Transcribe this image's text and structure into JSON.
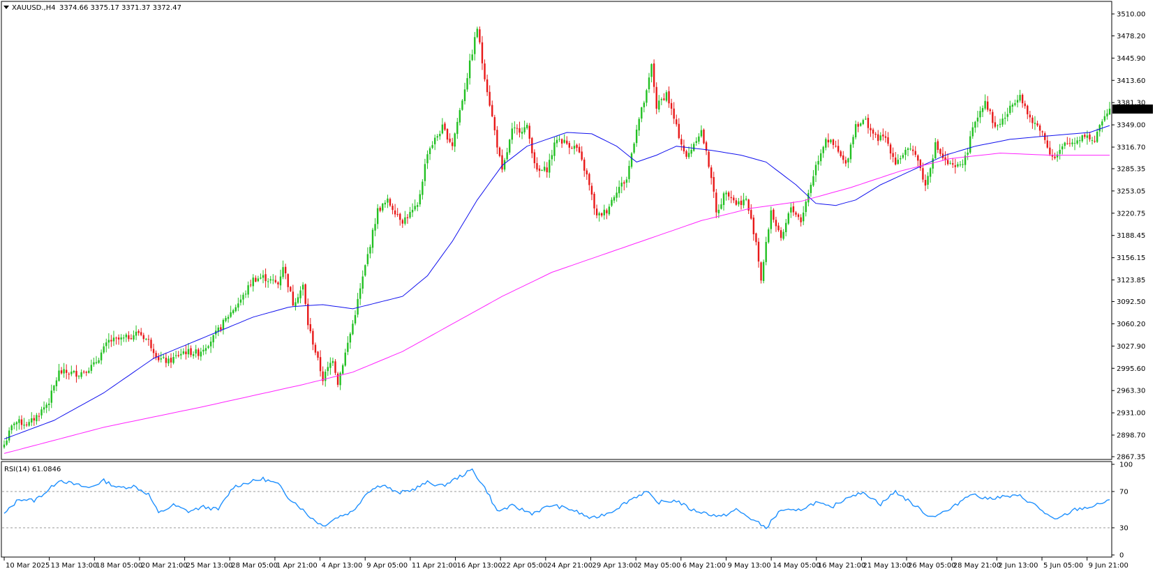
{
  "header": {
    "symbol_text": "XAUUSD.,H4",
    "ohlc_text": "3374.66 3375.17 3371.37 3372.47"
  },
  "current_price": "3372.47",
  "rsi_label": "RSI(14) 61.0846",
  "colors": {
    "bull": "#22c022",
    "bear": "#e81818",
    "ma_fast": "#1010ee",
    "ma_slow": "#ff22ff",
    "rsi": "#1e90ff",
    "price_tag_bg": "#000000",
    "price_tag_fg": "#ffffff"
  },
  "chart_data": [
    {
      "type": "candlestick",
      "symbol": "XAUUSD.",
      "timeframe": "H4",
      "ylim": [
        2867.35,
        3510.0
      ],
      "y_ticks": [
        "3510.00",
        "3478.20",
        "3445.90",
        "3413.60",
        "3381.30",
        "3349.00",
        "3316.70",
        "3285.35",
        "3253.05",
        "3220.75",
        "3188.45",
        "3156.15",
        "3123.85",
        "3092.50",
        "3060.20",
        "3027.90",
        "2995.60",
        "2963.30",
        "2931.00",
        "2898.70",
        "2867.35"
      ],
      "x_ticks": [
        "10 Mar 2025",
        "13 Mar 13:00",
        "18 Mar 05:00",
        "20 Mar 21:00",
        "25 Mar 13:00",
        "28 Mar 05:00",
        "1 Apr 21:00",
        "4 Apr 13:00",
        "9 Apr 05:00",
        "11 Apr 21:00",
        "16 Apr 13:00",
        "22 Apr 05:00",
        "24 Apr 21:00",
        "29 Apr 13:00",
        "2 May 05:00",
        "6 May 21:00",
        "9 May 13:00",
        "14 May 05:00",
        "16 May 21:00",
        "21 May 13:00",
        "26 May 05:00",
        "28 May 21:00",
        "2 Jun 13:00",
        "5 Jun 05:00",
        "9 Jun 21:00"
      ],
      "close_path": [
        {
          "t": 0,
          "p": 2885
        },
        {
          "t": 4,
          "p": 2918
        },
        {
          "t": 10,
          "p": 2915
        },
        {
          "t": 14,
          "p": 2930
        },
        {
          "t": 18,
          "p": 2948
        },
        {
          "t": 22,
          "p": 2990
        },
        {
          "t": 30,
          "p": 2988
        },
        {
          "t": 36,
          "p": 3000
        },
        {
          "t": 42,
          "p": 3035
        },
        {
          "t": 48,
          "p": 3038
        },
        {
          "t": 54,
          "p": 3048
        },
        {
          "t": 58,
          "p": 3035
        },
        {
          "t": 62,
          "p": 3010
        },
        {
          "t": 66,
          "p": 3005
        },
        {
          "t": 72,
          "p": 3020
        },
        {
          "t": 78,
          "p": 3018
        },
        {
          "t": 84,
          "p": 3040
        },
        {
          "t": 90,
          "p": 3072
        },
        {
          "t": 96,
          "p": 3100
        },
        {
          "t": 100,
          "p": 3125
        },
        {
          "t": 104,
          "p": 3128
        },
        {
          "t": 110,
          "p": 3118
        },
        {
          "t": 112,
          "p": 3145
        },
        {
          "t": 116,
          "p": 3090
        },
        {
          "t": 120,
          "p": 3115
        },
        {
          "t": 122,
          "p": 3060
        },
        {
          "t": 128,
          "p": 2980
        },
        {
          "t": 132,
          "p": 3010
        },
        {
          "t": 134,
          "p": 2975
        },
        {
          "t": 140,
          "p": 3060
        },
        {
          "t": 146,
          "p": 3160
        },
        {
          "t": 150,
          "p": 3225
        },
        {
          "t": 154,
          "p": 3238
        },
        {
          "t": 160,
          "p": 3210
        },
        {
          "t": 166,
          "p": 3230
        },
        {
          "t": 170,
          "p": 3310
        },
        {
          "t": 176,
          "p": 3345
        },
        {
          "t": 180,
          "p": 3320
        },
        {
          "t": 186,
          "p": 3420
        },
        {
          "t": 190,
          "p": 3490
        },
        {
          "t": 192,
          "p": 3440
        },
        {
          "t": 196,
          "p": 3360
        },
        {
          "t": 200,
          "p": 3280
        },
        {
          "t": 204,
          "p": 3340
        },
        {
          "t": 210,
          "p": 3345
        },
        {
          "t": 214,
          "p": 3280
        },
        {
          "t": 218,
          "p": 3285
        },
        {
          "t": 222,
          "p": 3330
        },
        {
          "t": 226,
          "p": 3322
        },
        {
          "t": 230,
          "p": 3315
        },
        {
          "t": 234,
          "p": 3275
        },
        {
          "t": 238,
          "p": 3215
        },
        {
          "t": 242,
          "p": 3225
        },
        {
          "t": 246,
          "p": 3255
        },
        {
          "t": 250,
          "p": 3270
        },
        {
          "t": 254,
          "p": 3345
        },
        {
          "t": 258,
          "p": 3395
        },
        {
          "t": 260,
          "p": 3435
        },
        {
          "t": 262,
          "p": 3375
        },
        {
          "t": 266,
          "p": 3395
        },
        {
          "t": 270,
          "p": 3345
        },
        {
          "t": 274,
          "p": 3300
        },
        {
          "t": 278,
          "p": 3330
        },
        {
          "t": 280,
          "p": 3340
        },
        {
          "t": 284,
          "p": 3275
        },
        {
          "t": 286,
          "p": 3220
        },
        {
          "t": 290,
          "p": 3255
        },
        {
          "t": 294,
          "p": 3235
        },
        {
          "t": 298,
          "p": 3240
        },
        {
          "t": 302,
          "p": 3180
        },
        {
          "t": 304,
          "p": 3125
        },
        {
          "t": 308,
          "p": 3225
        },
        {
          "t": 312,
          "p": 3180
        },
        {
          "t": 316,
          "p": 3230
        },
        {
          "t": 320,
          "p": 3210
        },
        {
          "t": 326,
          "p": 3290
        },
        {
          "t": 330,
          "p": 3330
        },
        {
          "t": 334,
          "p": 3315
        },
        {
          "t": 338,
          "p": 3290
        },
        {
          "t": 342,
          "p": 3350
        },
        {
          "t": 346,
          "p": 3355
        },
        {
          "t": 350,
          "p": 3330
        },
        {
          "t": 354,
          "p": 3330
        },
        {
          "t": 358,
          "p": 3295
        },
        {
          "t": 362,
          "p": 3310
        },
        {
          "t": 366,
          "p": 3310
        },
        {
          "t": 370,
          "p": 3260
        },
        {
          "t": 374,
          "p": 3320
        },
        {
          "t": 378,
          "p": 3295
        },
        {
          "t": 382,
          "p": 3285
        },
        {
          "t": 386,
          "p": 3300
        },
        {
          "t": 390,
          "p": 3355
        },
        {
          "t": 394,
          "p": 3385
        },
        {
          "t": 398,
          "p": 3345
        },
        {
          "t": 402,
          "p": 3360
        },
        {
          "t": 406,
          "p": 3385
        },
        {
          "t": 408,
          "p": 3395
        },
        {
          "t": 412,
          "p": 3355
        },
        {
          "t": 416,
          "p": 3345
        },
        {
          "t": 420,
          "p": 3310
        },
        {
          "t": 422,
          "p": 3300
        },
        {
          "t": 426,
          "p": 3320
        },
        {
          "t": 430,
          "p": 3325
        },
        {
          "t": 434,
          "p": 3335
        },
        {
          "t": 438,
          "p": 3325
        },
        {
          "t": 442,
          "p": 3365
        },
        {
          "t": 444,
          "p": 3372
        }
      ],
      "overlays": [
        {
          "name": "ma_fast",
          "points": [
            {
              "t": 0,
              "p": 2893
            },
            {
              "t": 20,
              "p": 2920
            },
            {
              "t": 40,
              "p": 2960
            },
            {
              "t": 60,
              "p": 3010
            },
            {
              "t": 80,
              "p": 3040
            },
            {
              "t": 100,
              "p": 3070
            },
            {
              "t": 115,
              "p": 3085
            },
            {
              "t": 128,
              "p": 3088
            },
            {
              "t": 140,
              "p": 3082
            },
            {
              "t": 160,
              "p": 3100
            },
            {
              "t": 170,
              "p": 3130
            },
            {
              "t": 180,
              "p": 3180
            },
            {
              "t": 190,
              "p": 3240
            },
            {
              "t": 200,
              "p": 3290
            },
            {
              "t": 210,
              "p": 3318
            },
            {
              "t": 226,
              "p": 3338
            },
            {
              "t": 236,
              "p": 3336
            },
            {
              "t": 246,
              "p": 3318
            },
            {
              "t": 254,
              "p": 3295
            },
            {
              "t": 262,
              "p": 3305
            },
            {
              "t": 270,
              "p": 3318
            },
            {
              "t": 284,
              "p": 3312
            },
            {
              "t": 296,
              "p": 3305
            },
            {
              "t": 306,
              "p": 3295
            },
            {
              "t": 318,
              "p": 3262
            },
            {
              "t": 326,
              "p": 3235
            },
            {
              "t": 334,
              "p": 3232
            },
            {
              "t": 342,
              "p": 3240
            },
            {
              "t": 352,
              "p": 3262
            },
            {
              "t": 364,
              "p": 3282
            },
            {
              "t": 378,
              "p": 3305
            },
            {
              "t": 390,
              "p": 3318
            },
            {
              "t": 404,
              "p": 3328
            },
            {
              "t": 416,
              "p": 3332
            },
            {
              "t": 426,
              "p": 3335
            },
            {
              "t": 436,
              "p": 3338
            },
            {
              "t": 444,
              "p": 3348
            }
          ]
        },
        {
          "name": "ma_slow",
          "points": [
            {
              "t": 0,
              "p": 2872
            },
            {
              "t": 40,
              "p": 2910
            },
            {
              "t": 80,
              "p": 2940
            },
            {
              "t": 120,
              "p": 2972
            },
            {
              "t": 140,
              "p": 2990
            },
            {
              "t": 160,
              "p": 3020
            },
            {
              "t": 180,
              "p": 3060
            },
            {
              "t": 200,
              "p": 3100
            },
            {
              "t": 220,
              "p": 3135
            },
            {
              "t": 240,
              "p": 3160
            },
            {
              "t": 260,
              "p": 3185
            },
            {
              "t": 280,
              "p": 3210
            },
            {
              "t": 300,
              "p": 3228
            },
            {
              "t": 320,
              "p": 3238
            },
            {
              "t": 340,
              "p": 3258
            },
            {
              "t": 360,
              "p": 3282
            },
            {
              "t": 380,
              "p": 3300
            },
            {
              "t": 400,
              "p": 3308
            },
            {
              "t": 420,
              "p": 3305
            },
            {
              "t": 444,
              "p": 3305
            }
          ]
        }
      ]
    },
    {
      "type": "line",
      "name": "RSI(14)",
      "value": 61.0846,
      "ylim": [
        0,
        100
      ],
      "y_ticks": [
        100,
        70,
        30,
        0
      ],
      "levels": [
        70,
        30
      ],
      "points": [
        {
          "t": 0,
          "p": 45
        },
        {
          "t": 6,
          "p": 62
        },
        {
          "t": 12,
          "p": 60
        },
        {
          "t": 18,
          "p": 72
        },
        {
          "t": 22,
          "p": 83
        },
        {
          "t": 28,
          "p": 78
        },
        {
          "t": 34,
          "p": 74
        },
        {
          "t": 40,
          "p": 82
        },
        {
          "t": 46,
          "p": 74
        },
        {
          "t": 52,
          "p": 76
        },
        {
          "t": 58,
          "p": 67
        },
        {
          "t": 62,
          "p": 46
        },
        {
          "t": 68,
          "p": 55
        },
        {
          "t": 74,
          "p": 48
        },
        {
          "t": 80,
          "p": 53
        },
        {
          "t": 86,
          "p": 50
        },
        {
          "t": 92,
          "p": 75
        },
        {
          "t": 98,
          "p": 80
        },
        {
          "t": 104,
          "p": 84
        },
        {
          "t": 110,
          "p": 78
        },
        {
          "t": 114,
          "p": 64
        },
        {
          "t": 118,
          "p": 55
        },
        {
          "t": 122,
          "p": 44
        },
        {
          "t": 128,
          "p": 32
        },
        {
          "t": 134,
          "p": 42
        },
        {
          "t": 140,
          "p": 48
        },
        {
          "t": 146,
          "p": 70
        },
        {
          "t": 152,
          "p": 78
        },
        {
          "t": 158,
          "p": 68
        },
        {
          "t": 164,
          "p": 72
        },
        {
          "t": 170,
          "p": 80
        },
        {
          "t": 176,
          "p": 76
        },
        {
          "t": 182,
          "p": 85
        },
        {
          "t": 188,
          "p": 94
        },
        {
          "t": 194,
          "p": 70
        },
        {
          "t": 198,
          "p": 48
        },
        {
          "t": 204,
          "p": 54
        },
        {
          "t": 212,
          "p": 46
        },
        {
          "t": 220,
          "p": 55
        },
        {
          "t": 228,
          "p": 50
        },
        {
          "t": 236,
          "p": 40
        },
        {
          "t": 244,
          "p": 48
        },
        {
          "t": 252,
          "p": 62
        },
        {
          "t": 258,
          "p": 70
        },
        {
          "t": 262,
          "p": 58
        },
        {
          "t": 270,
          "p": 60
        },
        {
          "t": 276,
          "p": 50
        },
        {
          "t": 282,
          "p": 46
        },
        {
          "t": 288,
          "p": 42
        },
        {
          "t": 294,
          "p": 50
        },
        {
          "t": 300,
          "p": 40
        },
        {
          "t": 306,
          "p": 30
        },
        {
          "t": 312,
          "p": 50
        },
        {
          "t": 318,
          "p": 48
        },
        {
          "t": 326,
          "p": 58
        },
        {
          "t": 332,
          "p": 52
        },
        {
          "t": 340,
          "p": 66
        },
        {
          "t": 346,
          "p": 68
        },
        {
          "t": 352,
          "p": 56
        },
        {
          "t": 358,
          "p": 70
        },
        {
          "t": 364,
          "p": 58
        },
        {
          "t": 372,
          "p": 42
        },
        {
          "t": 380,
          "p": 50
        },
        {
          "t": 388,
          "p": 68
        },
        {
          "t": 394,
          "p": 62
        },
        {
          "t": 400,
          "p": 64
        },
        {
          "t": 408,
          "p": 65
        },
        {
          "t": 414,
          "p": 55
        },
        {
          "t": 422,
          "p": 38
        },
        {
          "t": 430,
          "p": 50
        },
        {
          "t": 438,
          "p": 54
        },
        {
          "t": 444,
          "p": 61
        }
      ]
    }
  ]
}
